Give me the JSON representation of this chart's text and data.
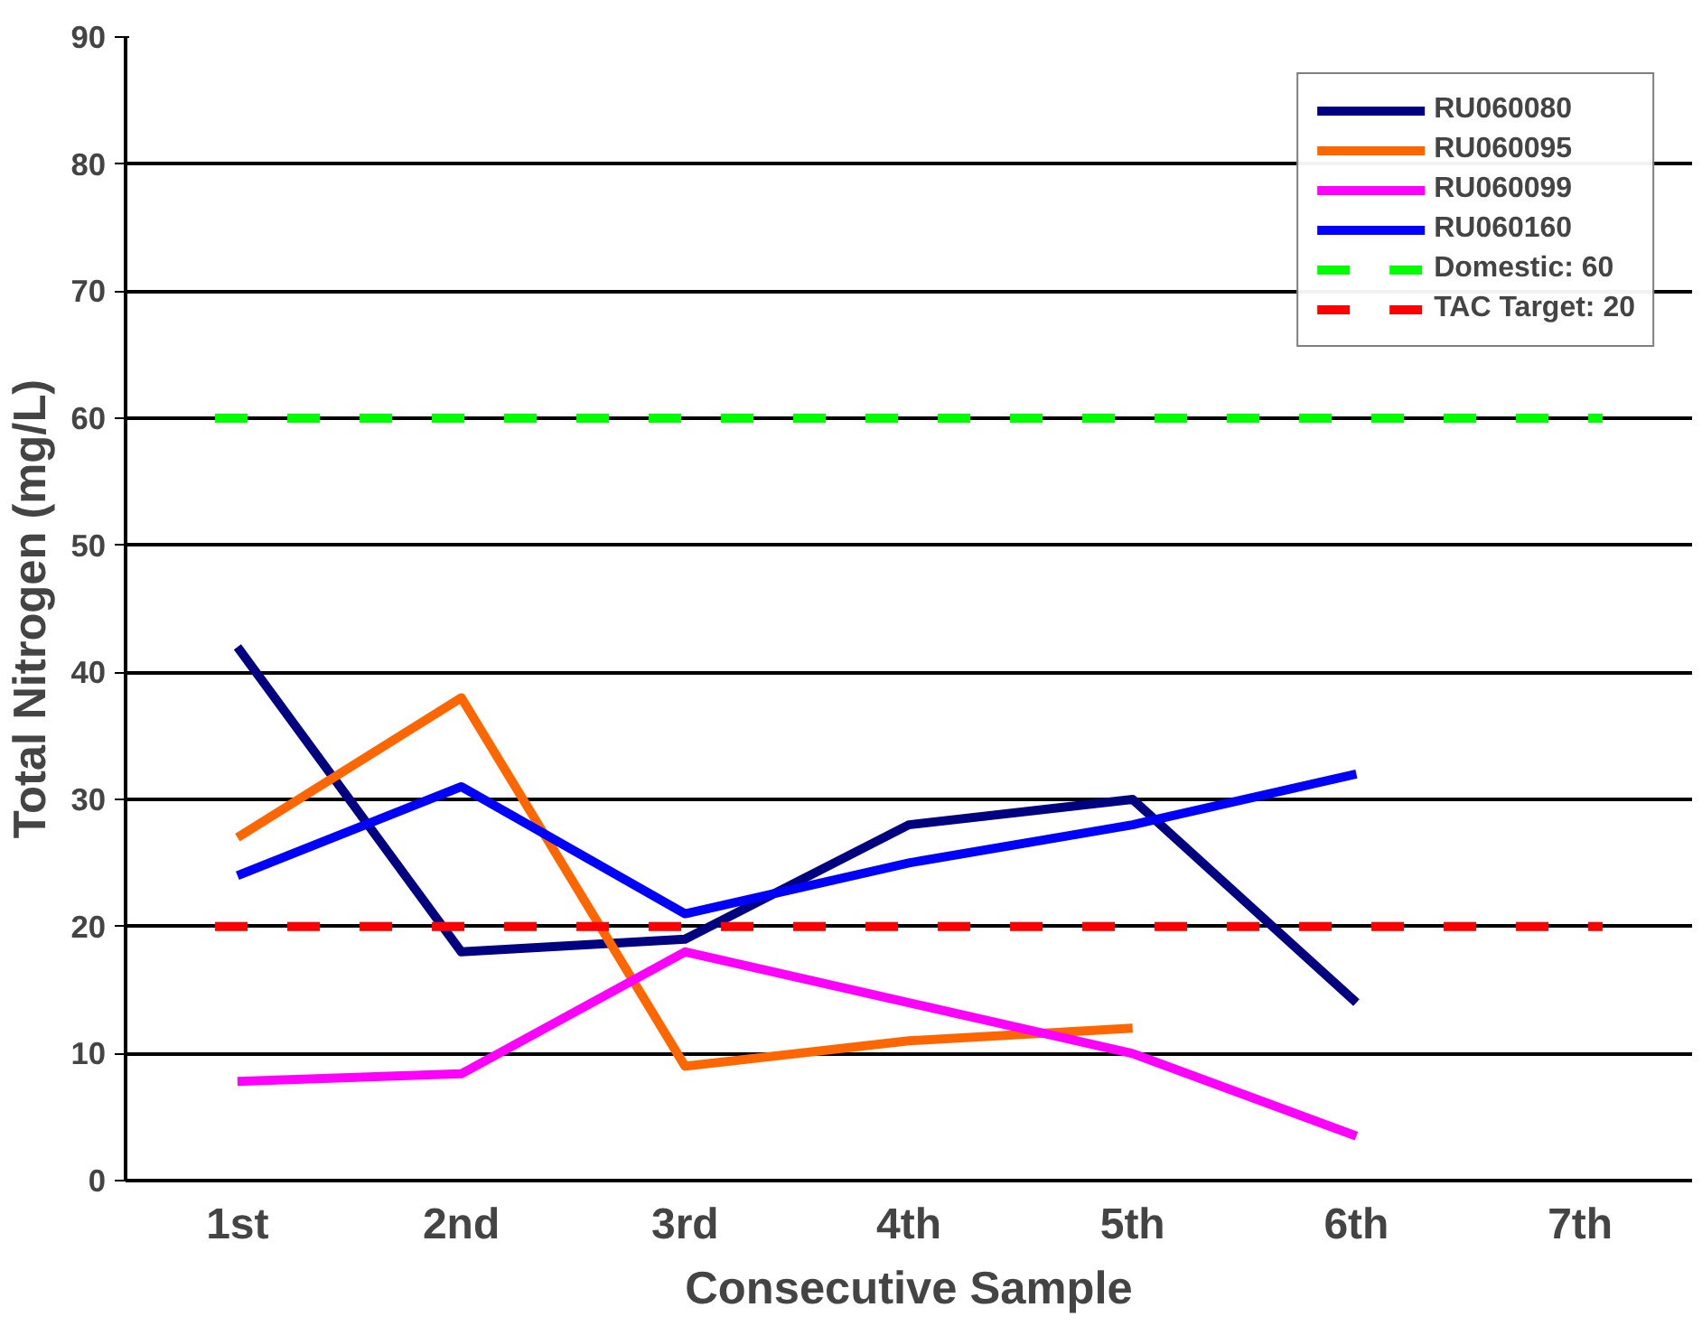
{
  "chart_data": {
    "type": "line",
    "xlabel": "Consecutive Sample",
    "ylabel": "Total Nitrogen (mg/L)",
    "categories": [
      "1st",
      "2nd",
      "3rd",
      "4th",
      "5th",
      "6th",
      "7th"
    ],
    "series": [
      {
        "name": "RU060080",
        "color": "#000080",
        "values": [
          42,
          18,
          19,
          28,
          30,
          14,
          null
        ]
      },
      {
        "name": "RU060095",
        "color": "#ff6600",
        "values": [
          27,
          38,
          9,
          11,
          12,
          null,
          null
        ]
      },
      {
        "name": "RU060099",
        "color": "#ff00ff",
        "values": [
          7.8,
          8.4,
          18,
          14,
          10,
          3.5,
          null
        ]
      },
      {
        "name": "RU060160",
        "color": "#0000ff",
        "values": [
          24,
          31,
          21,
          25,
          28,
          32,
          null
        ]
      }
    ],
    "ref_lines": [
      {
        "axis": "y",
        "value": 60,
        "label": "Domestic: 60",
        "color": "#00ff00",
        "line_style": "dashed"
      },
      {
        "axis": "y",
        "value": 20,
        "label": "TAC Target: 20",
        "color": "#ff0000",
        "line_style": "dashed"
      }
    ],
    "ylim": [
      0,
      90
    ],
    "yticks": [
      0,
      10,
      20,
      30,
      40,
      50,
      60,
      70,
      80,
      90
    ],
    "grid": "y",
    "legend": "top right",
    "marker": "none",
    "line_style": "solid"
  }
}
